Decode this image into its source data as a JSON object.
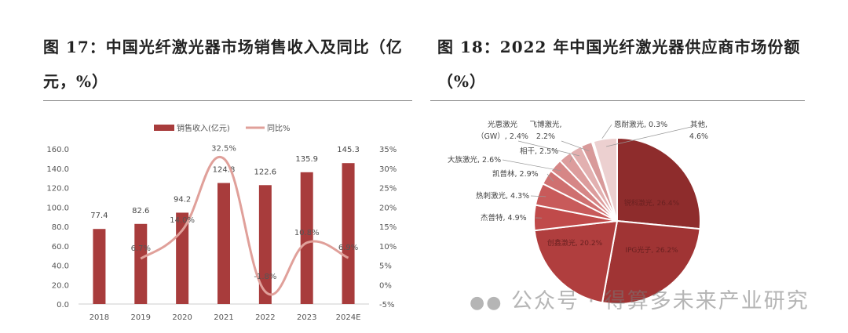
{
  "left_title_line1": "图 17：中国光纤激光器市场销售收入及同比（亿",
  "left_title_line2": "元，%）",
  "right_title_line1": "图 18：2022 年中国光纤激光器供应商市场份额",
  "right_title_line2": "（%）",
  "watermark": "公众号 · 得算多未来产业研究",
  "chart_data": [
    {
      "type": "bar",
      "title": "中国光纤激光器市场销售收入及同比（亿元，%）",
      "categories": [
        "2018",
        "2019",
        "2020",
        "2021",
        "2022",
        "2023",
        "2024E"
      ],
      "series": [
        {
          "name": "销售收入(亿元)",
          "type": "bar",
          "axis": "left",
          "values": [
            77.4,
            82.6,
            94.2,
            124.8,
            122.6,
            135.9,
            145.3
          ],
          "color": "#a83c3c"
        },
        {
          "name": "同比%",
          "type": "line",
          "axis": "right",
          "values": [
            null,
            6.7,
            14.0,
            32.5,
            -1.8,
            10.8,
            6.9
          ],
          "labels": [
            "",
            "6.7%",
            "14.0%",
            "32.5%",
            "-1.8%",
            "10.8%",
            "6.9%"
          ],
          "color": "#e0a09a"
        }
      ],
      "ylim": [
        0,
        160
      ],
      "yticks": [
        "0.0",
        "20.0",
        "40.0",
        "60.0",
        "80.0",
        "100.0",
        "120.0",
        "140.0",
        "160.0"
      ],
      "y2lim": [
        -5,
        35
      ],
      "y2ticks": [
        "-5%",
        "0%",
        "5%",
        "10%",
        "15%",
        "20%",
        "25%",
        "30%",
        "35%"
      ],
      "legend": "top"
    },
    {
      "type": "pie",
      "title": "2022 年中国光纤激光器供应商市场份额（%）",
      "slices": [
        {
          "label": "锐科激光",
          "value": 26.4,
          "text": "锐科激光, 26.4%",
          "color": "#8e2c2c"
        },
        {
          "label": "IPG光子",
          "value": 26.2,
          "text": "IPG光子, 26.2%",
          "color": "#a03434"
        },
        {
          "label": "创鑫激光",
          "value": 20.2,
          "text": "创鑫激光, 20.2%",
          "color": "#b03e3e"
        },
        {
          "label": "杰普特",
          "value": 4.9,
          "text": "杰普特, 4.9%",
          "color": "#c04a4a"
        },
        {
          "label": "热刺激光",
          "value": 4.3,
          "text": "热刺激光, 4.3%",
          "color": "#c85a5a"
        },
        {
          "label": "凯普林",
          "value": 2.9,
          "text": "凯普林, 2.9%",
          "color": "#cf7070"
        },
        {
          "label": "大族激光",
          "value": 2.6,
          "text": "大族激光, 2.6%",
          "color": "#d68686"
        },
        {
          "label": "相干",
          "value": 2.5,
          "text": "相干, 2.5%",
          "color": "#dc9c9c"
        },
        {
          "label": "光惠激光（GW）",
          "value": 2.4,
          "text": "光惠激光（GW）, 2.4%",
          "color": "#e2b0b0"
        },
        {
          "label": "飞博激光",
          "value": 2.2,
          "text": "飞博激光, 2.2%",
          "color": "#d89a9a"
        },
        {
          "label": "恩耐激光",
          "value": 0.3,
          "text": "恩耐激光, 0.3%",
          "color": "#e8c4c4"
        },
        {
          "label": "其他",
          "value": 4.6,
          "text": "其他, 4.6%",
          "color": "#ecd0d0"
        }
      ]
    }
  ]
}
